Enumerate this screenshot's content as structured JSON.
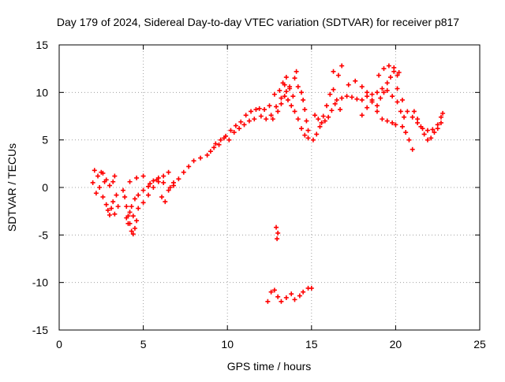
{
  "chart_data": {
    "type": "scatter",
    "title": "Day 179 of 2024, Sidereal Day-to-day VTEC variation (SDTVAR) for receiver p817",
    "xlabel": "GPS time / hours",
    "ylabel": "SDTVAR / TECUs",
    "xlim": [
      0,
      25
    ],
    "ylim": [
      -15,
      15
    ],
    "xticks": [
      "0",
      "5",
      "10",
      "15",
      "20",
      "25"
    ],
    "yticks": [
      "-15",
      "-10",
      "-5",
      "0",
      "5",
      "10",
      "15"
    ],
    "grid": true,
    "legend": "none",
    "marker": "plus",
    "color": "#ff0000",
    "series": [
      {
        "values": [
          [
            2.0,
            0.5
          ],
          [
            2.1,
            1.8
          ],
          [
            2.2,
            -0.6
          ],
          [
            2.3,
            1.2
          ],
          [
            2.4,
            0.0
          ],
          [
            2.5,
            1.6
          ],
          [
            2.6,
            -1.0
          ],
          [
            2.7,
            0.6
          ],
          [
            2.8,
            -1.8
          ],
          [
            2.9,
            -2.4
          ],
          [
            3.0,
            -2.9
          ],
          [
            3.1,
            -2.2
          ],
          [
            3.2,
            -1.5
          ],
          [
            3.3,
            -2.8
          ],
          [
            3.4,
            -0.8
          ],
          [
            3.5,
            -2.0
          ],
          [
            2.6,
            1.5
          ],
          [
            2.8,
            0.8
          ],
          [
            3.0,
            0.2
          ],
          [
            3.2,
            0.6
          ],
          [
            3.3,
            1.2
          ],
          [
            3.8,
            -0.3
          ],
          [
            3.9,
            -1.0
          ],
          [
            4.0,
            -2.0
          ],
          [
            4.1,
            -3.0
          ],
          [
            4.2,
            -3.8
          ],
          [
            4.3,
            -4.6
          ],
          [
            4.4,
            -4.9
          ],
          [
            4.5,
            -4.3
          ],
          [
            4.6,
            -3.5
          ],
          [
            4.0,
            -3.2
          ],
          [
            4.1,
            -3.8
          ],
          [
            4.2,
            -2.6
          ],
          [
            4.3,
            -2.0
          ],
          [
            4.5,
            -1.2
          ],
          [
            4.7,
            -0.8
          ],
          [
            5.0,
            -0.3
          ],
          [
            5.3,
            0.1
          ],
          [
            5.6,
            0.7
          ],
          [
            5.9,
            1.0
          ],
          [
            6.2,
            0.5
          ],
          [
            6.5,
            -0.3
          ],
          [
            6.8,
            0.2
          ],
          [
            7.1,
            0.9
          ],
          [
            7.4,
            1.6
          ],
          [
            7.7,
            2.2
          ],
          [
            8.0,
            2.8
          ],
          [
            8.4,
            3.1
          ],
          [
            8.8,
            3.4
          ],
          [
            4.4,
            -3.0
          ],
          [
            4.7,
            -2.2
          ],
          [
            5.0,
            -1.6
          ],
          [
            5.3,
            -0.8
          ],
          [
            5.6,
            0.0
          ],
          [
            5.9,
            0.6
          ],
          [
            6.2,
            1.2
          ],
          [
            6.5,
            1.6
          ],
          [
            4.2,
            0.6
          ],
          [
            4.6,
            1.0
          ],
          [
            5.0,
            1.2
          ],
          [
            5.4,
            0.4
          ],
          [
            5.8,
            0.8
          ],
          [
            6.1,
            -1.0
          ],
          [
            6.3,
            -1.5
          ],
          [
            6.6,
            0.0
          ],
          [
            6.8,
            0.5
          ],
          [
            9.0,
            3.8
          ],
          [
            9.3,
            4.6
          ],
          [
            9.6,
            5.0
          ],
          [
            9.9,
            5.4
          ],
          [
            10.2,
            6.0
          ],
          [
            10.5,
            6.5
          ],
          [
            10.8,
            6.9
          ],
          [
            11.1,
            7.6
          ],
          [
            11.4,
            8.0
          ],
          [
            11.7,
            8.2
          ],
          [
            12.0,
            7.5
          ],
          [
            12.3,
            7.2
          ],
          [
            12.6,
            7.6
          ],
          [
            12.9,
            8.5
          ],
          [
            13.2,
            9.4
          ],
          [
            13.5,
            10.1
          ],
          [
            13.7,
            10.6
          ],
          [
            13.9,
            9.6
          ],
          [
            9.2,
            4.2
          ],
          [
            9.5,
            4.5
          ],
          [
            9.8,
            5.2
          ],
          [
            10.1,
            5.0
          ],
          [
            10.4,
            5.8
          ],
          [
            10.7,
            6.2
          ],
          [
            11.0,
            6.6
          ],
          [
            11.3,
            7.0
          ],
          [
            11.6,
            7.2
          ],
          [
            11.9,
            8.3
          ],
          [
            12.2,
            8.2
          ],
          [
            12.5,
            8.6
          ],
          [
            12.8,
            9.8
          ],
          [
            13.1,
            10.2
          ],
          [
            13.3,
            11.0
          ],
          [
            13.5,
            11.6
          ],
          [
            12.7,
            7.2
          ],
          [
            13.0,
            8.0
          ],
          [
            13.2,
            8.8
          ],
          [
            13.4,
            9.6
          ],
          [
            13.6,
            9.2
          ],
          [
            13.8,
            8.6
          ],
          [
            14.0,
            8.0
          ],
          [
            14.2,
            7.2
          ],
          [
            14.4,
            6.2
          ],
          [
            14.6,
            5.5
          ],
          [
            14.8,
            5.2
          ],
          [
            13.4,
            10.8
          ],
          [
            13.7,
            10.4
          ],
          [
            14.0,
            11.5
          ],
          [
            14.1,
            12.2
          ],
          [
            14.2,
            10.6
          ],
          [
            14.4,
            10.0
          ],
          [
            14.5,
            9.2
          ],
          [
            14.6,
            8.2
          ],
          [
            14.7,
            7.0
          ],
          [
            14.8,
            6.0
          ],
          [
            15.1,
            5.0
          ],
          [
            15.3,
            5.6
          ],
          [
            15.5,
            6.4
          ],
          [
            15.7,
            7.5
          ],
          [
            15.9,
            8.6
          ],
          [
            16.1,
            9.8
          ],
          [
            16.3,
            10.3
          ],
          [
            16.5,
            9.2
          ],
          [
            16.7,
            8.2
          ],
          [
            15.2,
            7.6
          ],
          [
            15.4,
            7.2
          ],
          [
            15.6,
            6.8
          ],
          [
            15.8,
            7.0
          ],
          [
            16.0,
            7.4
          ],
          [
            16.2,
            8.1
          ],
          [
            16.4,
            8.8
          ],
          [
            16.6,
            11.8
          ],
          [
            16.8,
            12.8
          ],
          [
            16.3,
            12.2
          ],
          [
            16.8,
            9.4
          ],
          [
            17.1,
            9.6
          ],
          [
            17.4,
            9.5
          ],
          [
            17.7,
            9.3
          ],
          [
            18.0,
            9.2
          ],
          [
            18.3,
            9.6
          ],
          [
            18.6,
            9.8
          ],
          [
            18.9,
            10.0
          ],
          [
            19.2,
            10.4
          ],
          [
            19.5,
            10.2
          ],
          [
            19.8,
            9.6
          ],
          [
            20.1,
            9.0
          ],
          [
            20.3,
            8.0
          ],
          [
            20.5,
            7.4
          ],
          [
            17.2,
            10.8
          ],
          [
            17.6,
            11.2
          ],
          [
            18.0,
            10.6
          ],
          [
            18.3,
            10.0
          ],
          [
            18.6,
            9.2
          ],
          [
            18.9,
            8.6
          ],
          [
            19.1,
            9.4
          ],
          [
            19.3,
            10.0
          ],
          [
            19.5,
            11.0
          ],
          [
            19.7,
            11.6
          ],
          [
            19.9,
            12.2
          ],
          [
            20.1,
            11.8
          ],
          [
            18.0,
            7.6
          ],
          [
            18.3,
            8.4
          ],
          [
            18.6,
            9.0
          ],
          [
            18.9,
            8.0
          ],
          [
            19.2,
            7.2
          ],
          [
            19.5,
            7.0
          ],
          [
            19.8,
            6.8
          ],
          [
            20.0,
            6.6
          ],
          [
            19.0,
            11.8
          ],
          [
            19.3,
            12.5
          ],
          [
            19.6,
            12.8
          ],
          [
            19.9,
            12.6
          ],
          [
            20.2,
            12.1
          ],
          [
            20.1,
            10.4
          ],
          [
            20.4,
            9.2
          ],
          [
            20.7,
            8.0
          ],
          [
            21.0,
            7.4
          ],
          [
            21.3,
            6.8
          ],
          [
            21.6,
            6.2
          ],
          [
            21.9,
            6.0
          ],
          [
            22.2,
            6.1
          ],
          [
            22.5,
            6.6
          ],
          [
            22.7,
            7.4
          ],
          [
            22.8,
            7.8
          ],
          [
            20.4,
            6.4
          ],
          [
            20.6,
            5.8
          ],
          [
            20.8,
            5.0
          ],
          [
            21.0,
            4.0
          ],
          [
            21.1,
            8.0
          ],
          [
            21.3,
            7.2
          ],
          [
            21.5,
            6.4
          ],
          [
            21.7,
            5.6
          ],
          [
            21.9,
            5.0
          ],
          [
            22.1,
            5.2
          ],
          [
            22.3,
            5.8
          ],
          [
            22.5,
            6.2
          ],
          [
            22.7,
            6.8
          ],
          [
            12.9,
            -4.2
          ],
          [
            13.0,
            -4.8
          ],
          [
            12.95,
            -5.4
          ],
          [
            12.4,
            -12.0
          ],
          [
            12.6,
            -11.0
          ],
          [
            12.8,
            -10.8
          ],
          [
            13.0,
            -11.5
          ],
          [
            13.2,
            -12.0
          ],
          [
            13.5,
            -11.6
          ],
          [
            13.8,
            -11.2
          ],
          [
            14.0,
            -11.8
          ],
          [
            14.3,
            -11.4
          ],
          [
            14.5,
            -11.0
          ],
          [
            14.8,
            -10.6
          ],
          [
            15.0,
            -10.6
          ]
        ]
      }
    ]
  }
}
